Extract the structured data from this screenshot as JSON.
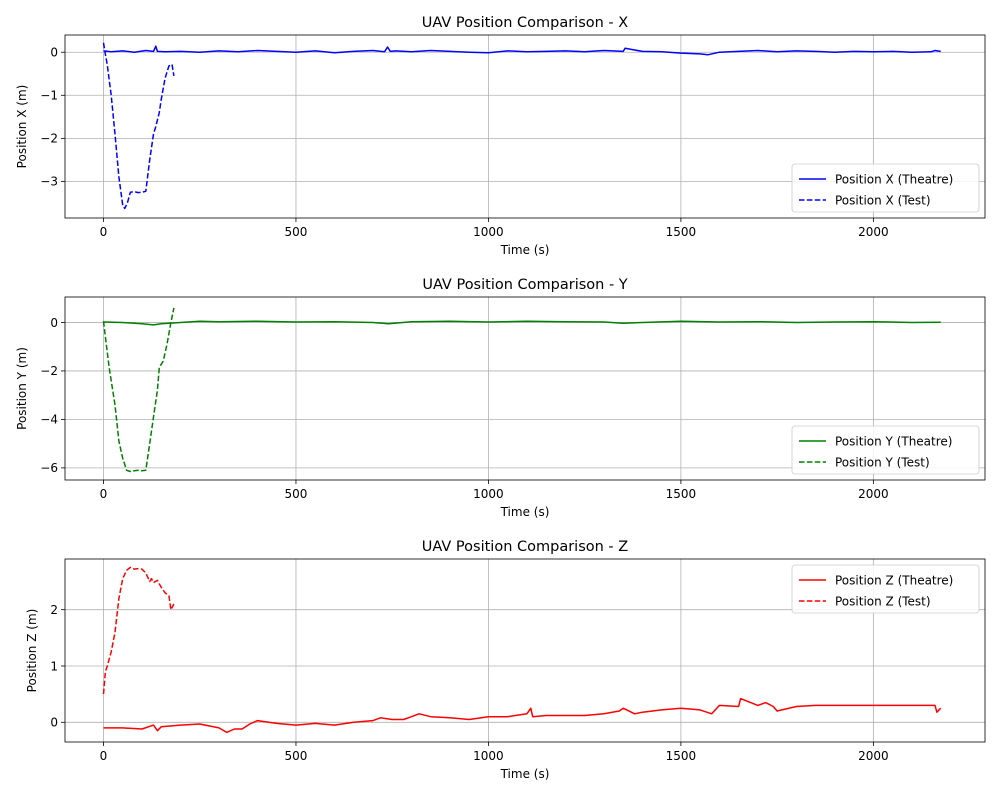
{
  "chart_data": [
    {
      "type": "line",
      "title": "UAV Position Comparison - X",
      "xlabel": "Time (s)",
      "ylabel": "Position X (m)",
      "xlim": [
        -100,
        2290
      ],
      "ylim": [
        -3.85,
        0.4
      ],
      "xticks": [
        0,
        500,
        1000,
        1500,
        2000
      ],
      "yticks": [
        0,
        -1,
        -2,
        -3
      ],
      "grid": true,
      "legend_position": "lower-right",
      "series": [
        {
          "name": "Position X (Theatre)",
          "color": "#0000ff",
          "style": "solid",
          "x": [
            0,
            20,
            50,
            80,
            110,
            130,
            136,
            140,
            160,
            200,
            250,
            300,
            350,
            400,
            450,
            500,
            550,
            600,
            650,
            700,
            730,
            738,
            745,
            760,
            800,
            850,
            900,
            950,
            1000,
            1050,
            1100,
            1150,
            1200,
            1250,
            1300,
            1350,
            1355,
            1400,
            1450,
            1500,
            1550,
            1570,
            1600,
            1650,
            1700,
            1750,
            1800,
            1850,
            1900,
            1950,
            2000,
            2050,
            2100,
            2150,
            2160,
            2175
          ],
          "y": [
            0.03,
            0.01,
            0.03,
            0.0,
            0.04,
            0.02,
            0.14,
            0.02,
            0.01,
            0.02,
            0.0,
            0.03,
            0.01,
            0.04,
            0.02,
            0.0,
            0.03,
            -0.01,
            0.02,
            0.04,
            0.01,
            0.12,
            0.02,
            0.03,
            0.01,
            0.04,
            0.02,
            0.0,
            -0.01,
            0.03,
            0.01,
            0.02,
            0.03,
            0.01,
            0.04,
            0.02,
            0.09,
            0.02,
            0.01,
            -0.02,
            -0.04,
            -0.06,
            0.0,
            0.02,
            0.04,
            0.01,
            0.03,
            0.02,
            0.0,
            0.02,
            0.01,
            0.02,
            0.0,
            0.01,
            0.04,
            0.02
          ]
        },
        {
          "name": "Position X (Test)",
          "color": "#0000ff",
          "style": "dashed",
          "x": [
            0,
            5,
            10,
            20,
            30,
            40,
            50,
            55,
            62,
            70,
            80,
            90,
            100,
            110,
            120,
            125,
            130,
            135,
            145,
            150,
            160,
            170,
            178,
            183
          ],
          "y": [
            0.22,
            -0.05,
            -0.3,
            -1.0,
            -1.9,
            -2.9,
            -3.55,
            -3.63,
            -3.5,
            -3.25,
            -3.24,
            -3.26,
            -3.25,
            -3.23,
            -2.5,
            -2.2,
            -1.9,
            -1.75,
            -1.4,
            -1.1,
            -0.6,
            -0.32,
            -0.28,
            -0.55
          ]
        }
      ]
    },
    {
      "type": "line",
      "title": "UAV Position Comparison - Y",
      "xlabel": "Time (s)",
      "ylabel": "Position Y (m)",
      "xlim": [
        -100,
        2290
      ],
      "ylim": [
        -6.5,
        1.05
      ],
      "xticks": [
        0,
        500,
        1000,
        1500,
        2000
      ],
      "yticks": [
        0,
        -2,
        -4,
        -6
      ],
      "grid": true,
      "legend_position": "lower-right",
      "series": [
        {
          "name": "Position Y (Theatre)",
          "color": "#008000",
          "style": "solid",
          "x": [
            0,
            50,
            100,
            130,
            150,
            200,
            250,
            300,
            400,
            500,
            600,
            700,
            740,
            800,
            900,
            1000,
            1100,
            1200,
            1300,
            1350,
            1400,
            1500,
            1600,
            1700,
            1800,
            1900,
            2000,
            2100,
            2175
          ],
          "y": [
            0.02,
            0.0,
            -0.05,
            -0.1,
            -0.05,
            0.0,
            0.05,
            0.03,
            0.05,
            0.02,
            0.03,
            0.0,
            -0.05,
            0.03,
            0.05,
            0.02,
            0.05,
            0.03,
            0.02,
            -0.03,
            0.0,
            0.05,
            0.02,
            0.03,
            0.0,
            0.02,
            0.03,
            0.0,
            0.01
          ]
        },
        {
          "name": "Position Y (Test)",
          "color": "#008000",
          "style": "dashed",
          "x": [
            0,
            5,
            15,
            30,
            40,
            50,
            60,
            70,
            80,
            90,
            100,
            110,
            120,
            130,
            140,
            145,
            155,
            165,
            175,
            183
          ],
          "y": [
            0.05,
            -0.6,
            -1.9,
            -3.4,
            -4.9,
            -5.6,
            -6.1,
            -6.15,
            -6.12,
            -6.1,
            -6.12,
            -6.1,
            -5.0,
            -3.9,
            -2.8,
            -1.85,
            -1.6,
            -0.9,
            0.0,
            0.6
          ]
        }
      ]
    },
    {
      "type": "line",
      "title": "UAV Position Comparison - Z",
      "xlabel": "Time (s)",
      "ylabel": "Position Z (m)",
      "xlim": [
        -100,
        2290
      ],
      "ylim": [
        -0.35,
        2.9
      ],
      "xticks": [
        0,
        500,
        1000,
        1500,
        2000
      ],
      "yticks": [
        0,
        1,
        2
      ],
      "grid": true,
      "legend_position": "upper-right",
      "series": [
        {
          "name": "Position Z (Theatre)",
          "color": "#ff0000",
          "style": "solid",
          "x": [
            0,
            50,
            100,
            130,
            140,
            150,
            200,
            250,
            300,
            320,
            340,
            360,
            380,
            400,
            450,
            500,
            550,
            600,
            650,
            700,
            720,
            750,
            780,
            800,
            820,
            850,
            900,
            950,
            1000,
            1050,
            1100,
            1110,
            1115,
            1150,
            1200,
            1250,
            1300,
            1340,
            1350,
            1380,
            1400,
            1450,
            1500,
            1550,
            1580,
            1600,
            1650,
            1655,
            1700,
            1720,
            1740,
            1750,
            1800,
            1850,
            1900,
            1950,
            2000,
            2050,
            2100,
            2150,
            2160,
            2165,
            2175
          ],
          "y": [
            -0.1,
            -0.1,
            -0.12,
            -0.05,
            -0.15,
            -0.08,
            -0.05,
            -0.03,
            -0.1,
            -0.18,
            -0.12,
            -0.12,
            -0.03,
            0.03,
            -0.02,
            -0.05,
            -0.02,
            -0.05,
            0.0,
            0.03,
            0.08,
            0.05,
            0.05,
            0.1,
            0.15,
            0.1,
            0.08,
            0.05,
            0.1,
            0.1,
            0.15,
            0.25,
            0.1,
            0.12,
            0.12,
            0.12,
            0.15,
            0.2,
            0.25,
            0.15,
            0.18,
            0.22,
            0.25,
            0.22,
            0.15,
            0.3,
            0.28,
            0.42,
            0.3,
            0.35,
            0.28,
            0.2,
            0.28,
            0.3,
            0.3,
            0.3,
            0.3,
            0.3,
            0.3,
            0.3,
            0.3,
            0.18,
            0.25
          ]
        },
        {
          "name": "Position Z (Test)",
          "color": "#ff0000",
          "style": "dashed",
          "x": [
            0,
            5,
            10,
            20,
            30,
            40,
            50,
            60,
            70,
            80,
            90,
            100,
            110,
            120,
            125,
            130,
            140,
            150,
            160,
            170,
            175,
            183
          ],
          "y": [
            0.5,
            0.9,
            1.0,
            1.25,
            1.6,
            2.2,
            2.55,
            2.7,
            2.75,
            2.72,
            2.73,
            2.72,
            2.65,
            2.5,
            2.55,
            2.48,
            2.52,
            2.4,
            2.3,
            2.25,
            2.0,
            2.1
          ]
        }
      ]
    }
  ]
}
